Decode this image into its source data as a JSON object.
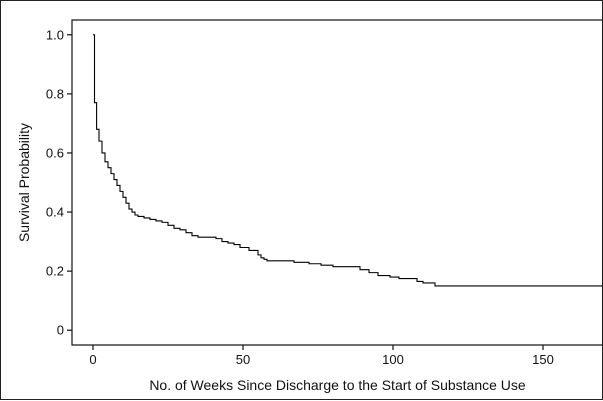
{
  "chart_data": {
    "type": "line",
    "title": "",
    "xlabel": "No. of Weeks Since Discharge to the Start of Substance Use",
    "ylabel": "Survival Probability",
    "xlim": [
      -7,
      170
    ],
    "ylim": [
      -0.05,
      1.05
    ],
    "x_ticks": [
      0,
      50,
      100,
      150
    ],
    "y_ticks": [
      0,
      0.2,
      0.4,
      0.6,
      0.8,
      1.0
    ],
    "y_tick_labels": [
      "0",
      "0.2",
      "0.4",
      "0.6",
      "0.8",
      "1.0"
    ],
    "x_tick_labels": [
      "0",
      "50",
      "100",
      "150"
    ],
    "grid": false,
    "legend": "none",
    "step": true,
    "series": [
      {
        "color": "#000000",
        "points": [
          [
            0,
            1.0
          ],
          [
            0.5,
            0.77
          ],
          [
            1.2,
            0.68
          ],
          [
            2,
            0.64
          ],
          [
            3,
            0.6
          ],
          [
            4,
            0.57
          ],
          [
            5,
            0.55
          ],
          [
            6,
            0.53
          ],
          [
            7,
            0.51
          ],
          [
            8,
            0.49
          ],
          [
            9,
            0.47
          ],
          [
            10,
            0.45
          ],
          [
            11,
            0.43
          ],
          [
            12,
            0.41
          ],
          [
            13,
            0.4
          ],
          [
            14,
            0.39
          ],
          [
            15,
            0.385
          ],
          [
            17,
            0.38
          ],
          [
            19,
            0.375
          ],
          [
            21,
            0.37
          ],
          [
            23,
            0.365
          ],
          [
            25,
            0.355
          ],
          [
            27,
            0.345
          ],
          [
            29,
            0.34
          ],
          [
            31,
            0.33
          ],
          [
            33,
            0.32
          ],
          [
            35,
            0.315
          ],
          [
            41,
            0.31
          ],
          [
            43,
            0.3
          ],
          [
            45,
            0.295
          ],
          [
            47,
            0.29
          ],
          [
            49,
            0.28
          ],
          [
            52,
            0.27
          ],
          [
            55,
            0.255
          ],
          [
            56,
            0.245
          ],
          [
            57,
            0.24
          ],
          [
            58,
            0.235
          ],
          [
            67,
            0.23
          ],
          [
            72,
            0.225
          ],
          [
            76,
            0.22
          ],
          [
            80,
            0.215
          ],
          [
            89,
            0.205
          ],
          [
            92,
            0.195
          ],
          [
            95,
            0.185
          ],
          [
            99,
            0.18
          ],
          [
            102,
            0.175
          ],
          [
            108,
            0.165
          ],
          [
            110,
            0.16
          ],
          [
            114,
            0.15
          ],
          [
            170,
            0.15
          ]
        ]
      }
    ]
  }
}
